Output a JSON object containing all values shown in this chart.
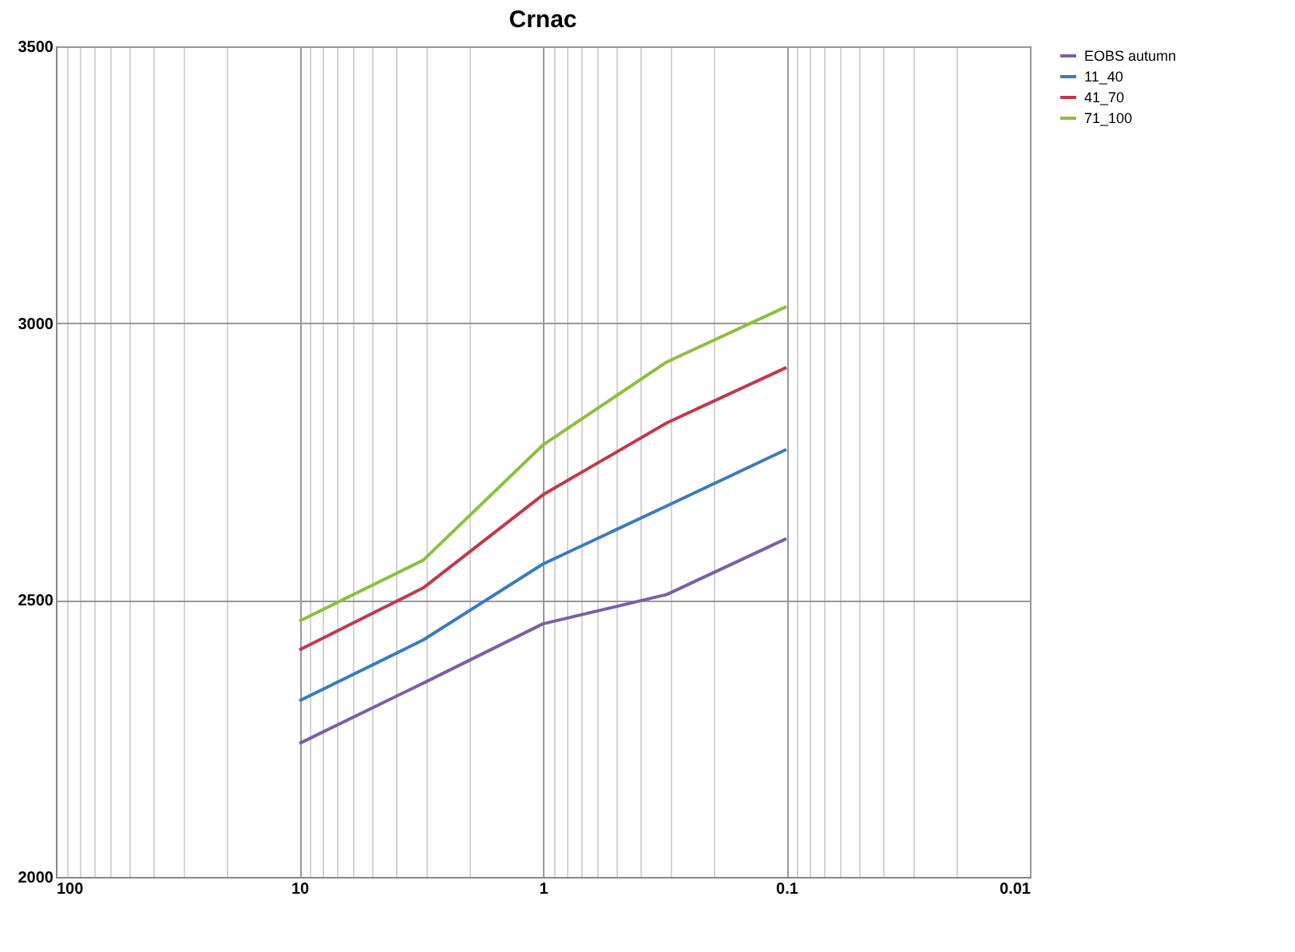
{
  "chart_data": {
    "type": "line",
    "title": "Crnac",
    "log": "x",
    "x": [
      10,
      3.1,
      1,
      0.31,
      0.1
    ],
    "series": [
      {
        "name": "EOBS autumn",
        "color": "#7b5fa6",
        "values": [
          2241,
          2350,
          2457,
          2510,
          2611
        ]
      },
      {
        "name": "11_40",
        "color": "#3a7bbf",
        "values": [
          2318,
          2428,
          2565,
          2670,
          2772
        ]
      },
      {
        "name": "41_70",
        "color": "#c0394a",
        "values": [
          2410,
          2522,
          2690,
          2820,
          2920
        ]
      },
      {
        "name": "71_100",
        "color": "#8cbf3f",
        "values": [
          2462,
          2572,
          2780,
          2930,
          3030
        ]
      }
    ],
    "xlim": [
      100,
      0.01
    ],
    "xticks": [
      100,
      10,
      1,
      0.1,
      0.01
    ],
    "ylim": [
      2000,
      3500
    ],
    "yticks": [
      2000,
      2500,
      3000,
      3500
    ],
    "grid": true,
    "legend": "right",
    "marker": "none",
    "line_style": "solid"
  }
}
